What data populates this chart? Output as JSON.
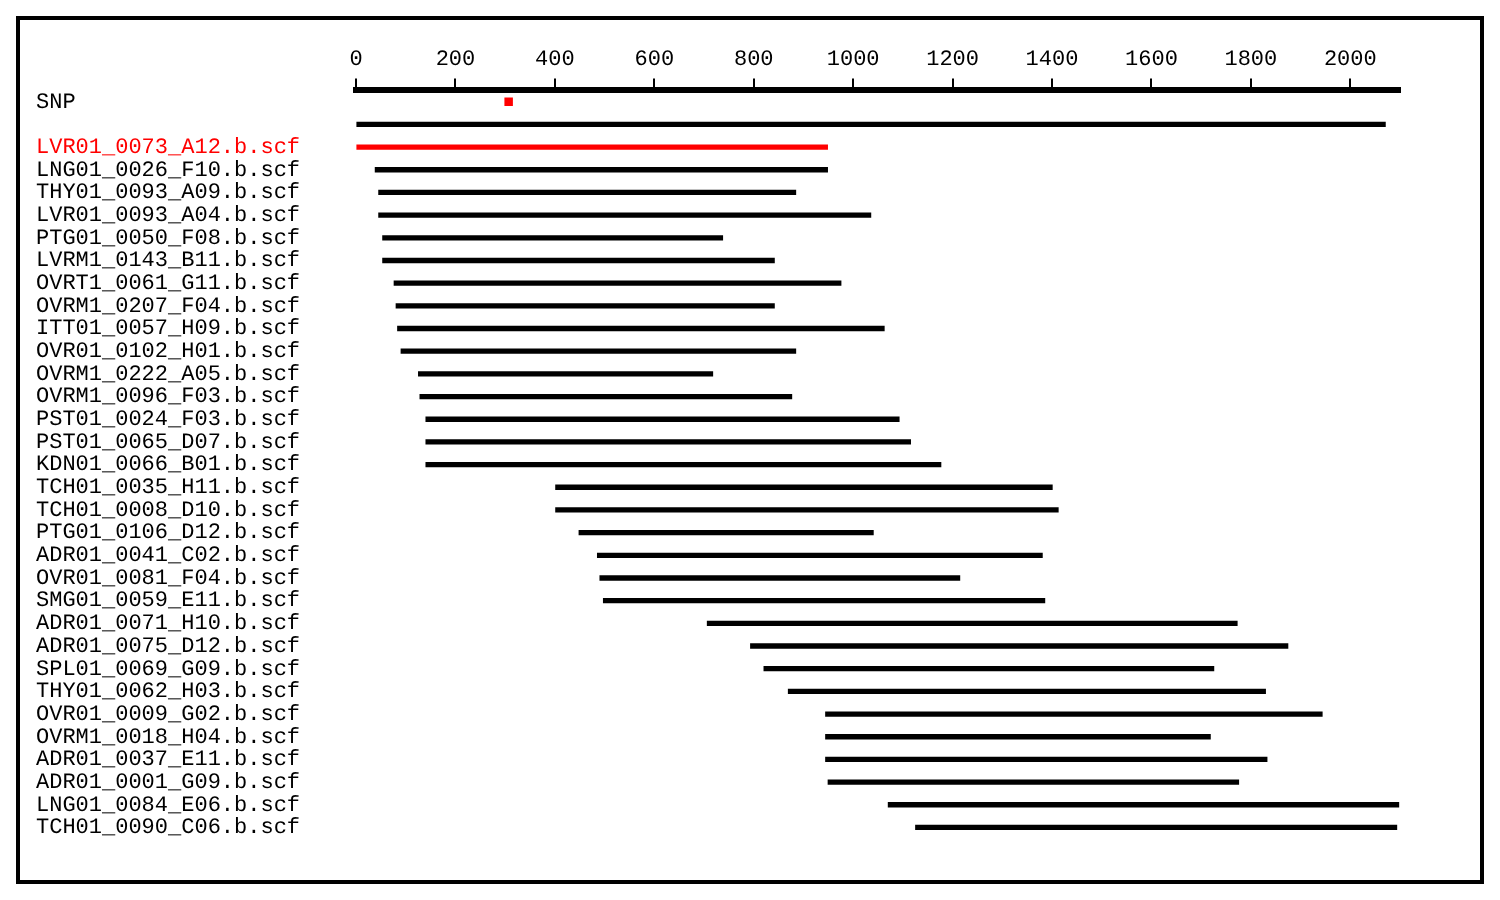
{
  "chart_data": {
    "type": "bar",
    "orientation": "horizontal",
    "categories": [
      "SNP",
      null,
      "LVR01_0073_A12.b.scf",
      "LNG01_0026_F10.b.scf",
      "THY01_0093_A09.b.scf",
      "LVR01_0093_A04.b.scf",
      "PTG01_0050_F08.b.scf",
      "LVRM1_0143_B11.b.scf",
      "OVRT1_0061_G11.b.scf",
      "OVRM1_0207_F04.b.scf",
      "ITT01_0057_H09.b.scf",
      "OVR01_0102_H01.b.scf",
      "OVRM1_0222_A05.b.scf",
      "OVRM1_0096_F03.b.scf",
      "PST01_0024_F03.b.scf",
      "PST01_0065_D07.b.scf",
      "KDN01_0066_B01.b.scf",
      "TCH01_0035_H11.b.scf",
      "TCH01_0008_D10.b.scf",
      "PTG01_0106_D12.b.scf",
      "ADR01_0041_C02.b.scf",
      "OVR01_0081_F04.b.scf",
      "SMG01_0059_E11.b.scf",
      "ADR01_0071_H10.b.scf",
      "ADR01_0075_D12.b.scf",
      "SPL01_0069_G09.b.scf",
      "THY01_0062_H03.b.scf",
      "OVR01_0009_G02.b.scf",
      "OVRM1_0018_H04.b.scf",
      "ADR01_0037_E11.b.scf",
      "ADR01_0001_G09.b.scf",
      "LNG01_0084_E06.b.scf",
      "TCH01_0090_C06.b.scf"
    ],
    "series": [
      {
        "type": "scatter",
        "color": "#ff0000",
        "values": [
          307,
          null,
          null,
          null,
          null,
          null,
          null,
          null,
          null,
          null,
          null,
          null,
          null,
          null,
          null,
          null,
          null,
          null,
          null,
          null,
          null,
          null,
          null,
          null,
          null,
          null,
          null,
          null,
          null,
          null,
          null,
          null,
          null
        ]
      },
      {
        "colors": [
          null,
          "#000000",
          "#ff0000",
          "#000000",
          "#000000",
          "#000000",
          "#000000",
          "#000000",
          "#000000",
          "#000000",
          "#000000",
          "#000000",
          "#000000",
          "#000000",
          "#000000",
          "#000000",
          "#000000",
          "#000000",
          "#000000",
          "#000000",
          "#000000",
          "#000000",
          "#000000",
          "#000000",
          "#000000",
          "#000000",
          "#000000",
          "#000000",
          "#000000",
          "#000000",
          "#000000",
          "#000000",
          "#000000"
        ],
        "base": [
          null,
          0,
          0,
          39,
          46,
          46,
          54,
          54,
          77,
          81,
          84,
          91,
          126,
          129,
          141,
          141,
          141,
          402,
          402,
          449,
          486,
          491,
          498,
          707,
          794,
          821,
          870,
          945,
          945,
          945,
          950,
          1071,
          1126
        ],
        "values": [
          null,
          2070,
          948,
          909,
          838,
          989,
          683,
          787,
          898,
          760,
          978,
          793,
          591,
          747,
          951,
          974,
          1035,
          998,
          1010,
          591,
          894,
          723,
          887,
          1065,
          1080,
          904,
          959,
          998,
          773,
          887,
          825,
          1026,
          967
        ]
      }
    ],
    "marker": "square",
    "xlim": [
      0,
      2100
    ],
    "xticks": [
      0,
      200,
      400,
      600,
      800,
      1000,
      1200,
      1400,
      1600,
      1800,
      2000
    ],
    "grid": false,
    "legend": false
  }
}
